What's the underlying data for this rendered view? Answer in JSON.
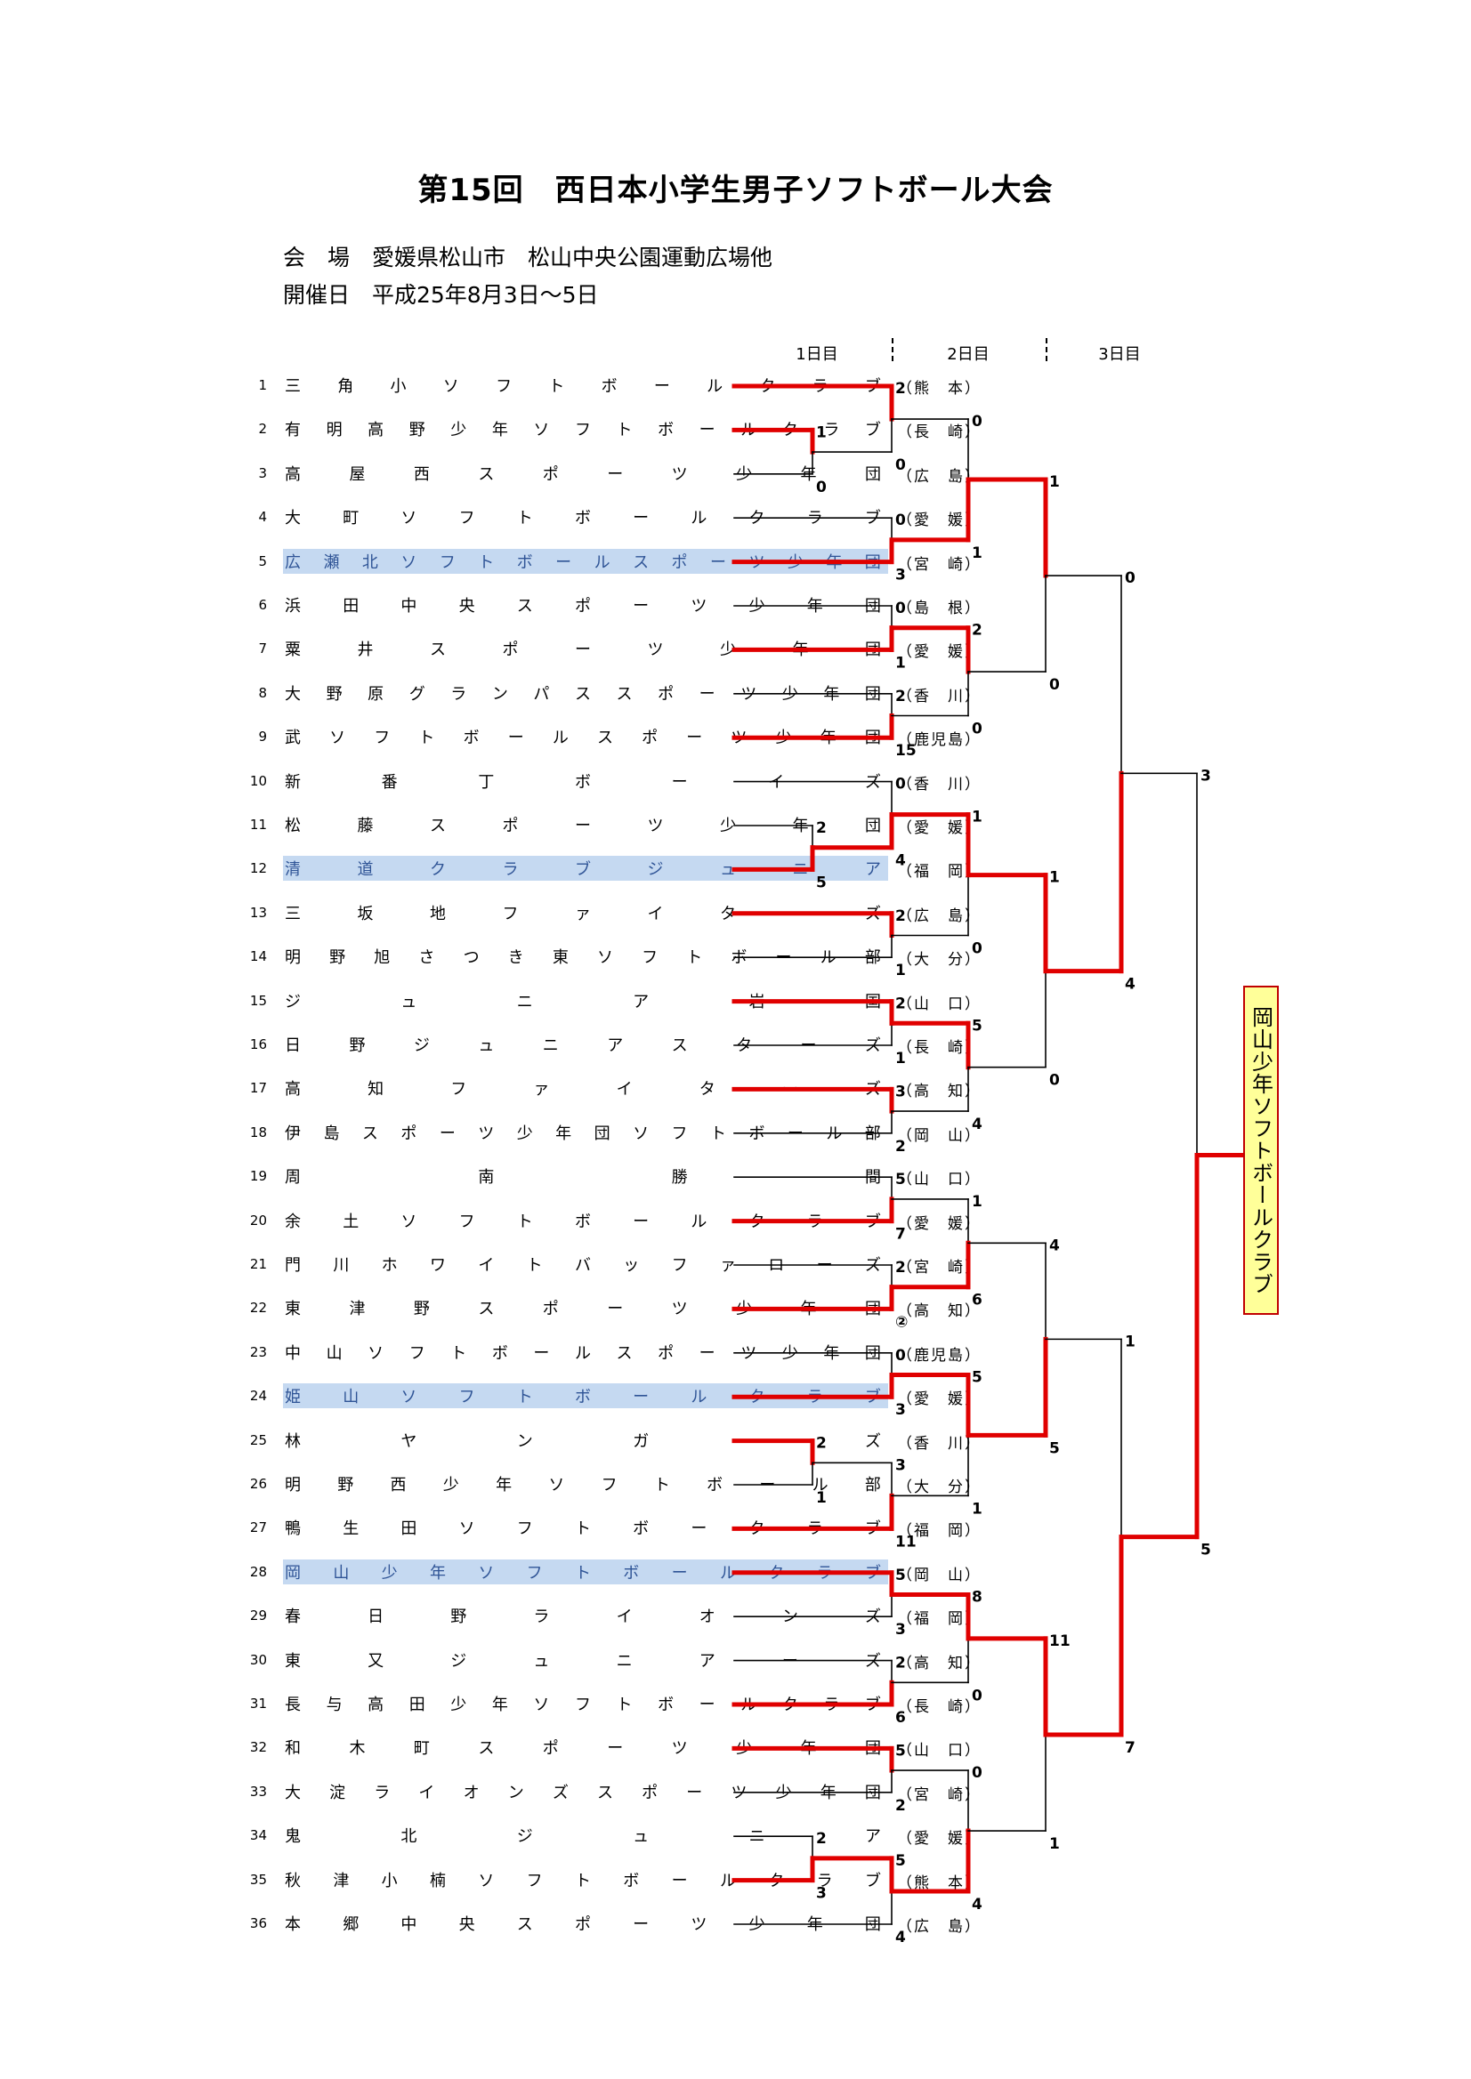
{
  "title": "第15回　西日本小学生男子ソフトボール大会",
  "venue": "会　場　愛媛県松山市　松山中央公園運動広場他",
  "dates": "開催日　平成25年8月3日〜5日",
  "days": [
    "1日目",
    "2日目",
    "3日目"
  ],
  "teams": [
    {
      "no": "1",
      "name": "三角小ソフトボールクラブ",
      "pref": "（熊　本）",
      "hl": false
    },
    {
      "no": "2",
      "name": "有明高野少年ソフトボールクラブ",
      "pref": "（長　崎）",
      "hl": false
    },
    {
      "no": "3",
      "name": "高屋西スポーツ少年団",
      "pref": "（広　島）",
      "hl": false
    },
    {
      "no": "4",
      "name": "大町ソフトボールクラブ",
      "pref": "（愛　媛）",
      "hl": false
    },
    {
      "no": "5",
      "name": "広瀬北ソフトボールスポーツ少年団",
      "pref": "（宮　崎）",
      "hl": true
    },
    {
      "no": "6",
      "name": "浜田中央スポーツ少年団",
      "pref": "（島　根）",
      "hl": false
    },
    {
      "no": "7",
      "name": "粟井スポーツ少年団",
      "pref": "（愛　媛）",
      "hl": false
    },
    {
      "no": "8",
      "name": "大野原グランパススポーツ少年団",
      "pref": "（香　川）",
      "hl": false
    },
    {
      "no": "9",
      "name": "武ソフトボールスポーツ少年団",
      "pref": "（鹿児島）",
      "hl": false
    },
    {
      "no": "10",
      "name": "新番丁ボーイズ",
      "pref": "（香　川）",
      "hl": false
    },
    {
      "no": "11",
      "name": "松藤スポーツ少年団",
      "pref": "（愛　媛）",
      "hl": false
    },
    {
      "no": "12",
      "name": "清道クラブジュニア",
      "pref": "（福　岡）",
      "hl": true
    },
    {
      "no": "13",
      "name": "三坂地ファイターズ",
      "pref": "（広　島）",
      "hl": false
    },
    {
      "no": "14",
      "name": "明野旭さつき東ソフトボール部",
      "pref": "（大　分）",
      "hl": false
    },
    {
      "no": "15",
      "name": "ジュニア岩国",
      "pref": "（山　口）",
      "hl": false
    },
    {
      "no": "16",
      "name": "日野ジュニアスターズ",
      "pref": "（長　崎）",
      "hl": false
    },
    {
      "no": "17",
      "name": "高知ファイターズ",
      "pref": "（高　知）",
      "hl": false
    },
    {
      "no": "18",
      "name": "伊島スポーツ少年団ソフトボール部",
      "pref": "（岡　山）",
      "hl": false
    },
    {
      "no": "19",
      "name": "周南勝間",
      "pref": "（山　口）",
      "hl": false
    },
    {
      "no": "20",
      "name": "余土ソフトボールクラブ",
      "pref": "（愛　媛）",
      "hl": false
    },
    {
      "no": "21",
      "name": "門川ホワイトバッファローズ",
      "pref": "（宮　崎）",
      "hl": false
    },
    {
      "no": "22",
      "name": "東津野スポーツ少年団",
      "pref": "（高　知）",
      "hl": false
    },
    {
      "no": "23",
      "name": "中山ソフトボールスポーツ少年団",
      "pref": "（鹿児島）",
      "hl": false
    },
    {
      "no": "24",
      "name": "姫山ソフトボールクラブ",
      "pref": "（愛　媛）",
      "hl": true
    },
    {
      "no": "25",
      "name": "林ヤンガーズ",
      "pref": "（香　川）",
      "hl": false
    },
    {
      "no": "26",
      "name": "明野西少年ソフトボール部",
      "pref": "（大　分）",
      "hl": false
    },
    {
      "no": "27",
      "name": "鴨生田ソフトボークラブ",
      "pref": "（福　岡）",
      "hl": false
    },
    {
      "no": "28",
      "name": "岡山少年ソフトボールクラブ",
      "pref": "（岡　山）",
      "hl": true
    },
    {
      "no": "29",
      "name": "春日野ライオンズ",
      "pref": "（福　岡）",
      "hl": false
    },
    {
      "no": "30",
      "name": "東又ジュニアーズ",
      "pref": "（高　知）",
      "hl": false
    },
    {
      "no": "31",
      "name": "長与高田少年ソフトボールクラブ",
      "pref": "（長　崎）",
      "hl": false
    },
    {
      "no": "32",
      "name": "和木町スポーツ少年団",
      "pref": "（山　口）",
      "hl": false
    },
    {
      "no": "33",
      "name": "大淀ライオンズスポーツ少年団",
      "pref": "（宮　崎）",
      "hl": false
    },
    {
      "no": "34",
      "name": "鬼北ジュニア",
      "pref": "（愛　媛）",
      "hl": false
    },
    {
      "no": "35",
      "name": "秋津小楠ソフトボールクラブ",
      "pref": "（熊　本）",
      "hl": false
    },
    {
      "no": "36",
      "name": "本郷中央スポーツ少年団",
      "pref": "（広　島）",
      "hl": false
    }
  ],
  "bracket": {
    "pre": [
      {
        "a": 1,
        "b": 2,
        "w": "a",
        "sa": "1",
        "sb": "0"
      },
      {
        "a": 10,
        "b": 11,
        "w": "b",
        "sa": "2",
        "sb": "5"
      },
      {
        "a": 24,
        "b": 25,
        "w": "a",
        "sa": "2",
        "sb": "1"
      },
      {
        "a": 33,
        "b": 34,
        "w": "b",
        "sa": "2",
        "sb": "3"
      }
    ],
    "r1": [
      {
        "a": "T0",
        "b": "P0",
        "w": "a",
        "sa": "2",
        "sb": "0"
      },
      {
        "a": "T3",
        "b": "T4",
        "w": "b",
        "sa": "0",
        "sb": "3"
      },
      {
        "a": "T5",
        "b": "T6",
        "w": "b",
        "sa": "0",
        "sb": "1"
      },
      {
        "a": "T7",
        "b": "T8",
        "w": "b",
        "sa": "2",
        "sb": "15"
      },
      {
        "a": "T9",
        "b": "P1",
        "w": "b",
        "sa": "0",
        "sb": "4"
      },
      {
        "a": "T12",
        "b": "T13",
        "w": "a",
        "sa": "2",
        "sb": "1"
      },
      {
        "a": "T14",
        "b": "T15",
        "w": "a",
        "sa": "2",
        "sb": "1"
      },
      {
        "a": "T16",
        "b": "T17",
        "w": "a",
        "sa": "3",
        "sb": "2"
      },
      {
        "a": "T18",
        "b": "T19",
        "w": "b",
        "sa": "5",
        "sb": "7"
      },
      {
        "a": "T20",
        "b": "T21",
        "w": "b",
        "sa": "2",
        "sb": "②"
      },
      {
        "a": "T22",
        "b": "T23",
        "w": "b",
        "sa": "0",
        "sb": "3"
      },
      {
        "a": "P2",
        "b": "T26",
        "w": "b",
        "sa": "3",
        "sb": "11"
      },
      {
        "a": "T27",
        "b": "T28",
        "w": "a",
        "sa": "5",
        "sb": "3"
      },
      {
        "a": "T29",
        "b": "T30",
        "w": "b",
        "sa": "2",
        "sb": "6"
      },
      {
        "a": "T31",
        "b": "T32",
        "w": "a",
        "sa": "5",
        "sb": "2"
      },
      {
        "a": "P3",
        "b": "T35",
        "w": "a",
        "sa": "5",
        "sb": "4"
      }
    ],
    "r2": [
      {
        "a": "A0",
        "b": "A1",
        "w": "b",
        "sa": "0",
        "sb": "1"
      },
      {
        "a": "A2",
        "b": "A3",
        "w": "a",
        "sa": "2",
        "sb": "0"
      },
      {
        "a": "A4",
        "b": "A5",
        "w": "a",
        "sa": "1",
        "sb": "0"
      },
      {
        "a": "A6",
        "b": "A7",
        "w": "a",
        "sa": "5",
        "sb": "4"
      },
      {
        "a": "A8",
        "b": "A9",
        "w": "b",
        "sa": "1",
        "sb": "6"
      },
      {
        "a": "A10",
        "b": "A11",
        "w": "a",
        "sa": "5",
        "sb": "1"
      },
      {
        "a": "A12",
        "b": "A13",
        "w": "a",
        "sa": "8",
        "sb": "0"
      },
      {
        "a": "A14",
        "b": "A15",
        "w": "b",
        "sa": "0",
        "sb": "4"
      }
    ],
    "r3": [
      {
        "a": "B0",
        "b": "B1",
        "w": "a",
        "sa": "1",
        "sb": "0"
      },
      {
        "a": "B2",
        "b": "B3",
        "w": "a",
        "sa": "1",
        "sb": "0"
      },
      {
        "a": "B4",
        "b": "B5",
        "w": "b",
        "sa": "4",
        "sb": "5"
      },
      {
        "a": "B6",
        "b": "B7",
        "w": "a",
        "sa": "11",
        "sb": "1"
      }
    ],
    "r4": [
      {
        "a": "C0",
        "b": "C1",
        "w": "b",
        "sa": "0",
        "sb": "4"
      },
      {
        "a": "C2",
        "b": "C3",
        "w": "b",
        "sa": "1",
        "sb": "7"
      }
    ],
    "final": {
      "a": "D0",
      "b": "D1",
      "w": "b",
      "sa": "3",
      "sb": "5"
    }
  },
  "champion": "岡山少年ソフトボールクラブ",
  "colors": {
    "win": "#e00000",
    "lose": "#000000",
    "highlight": "#c5d9f1",
    "champion_bg": "#ffff99"
  }
}
